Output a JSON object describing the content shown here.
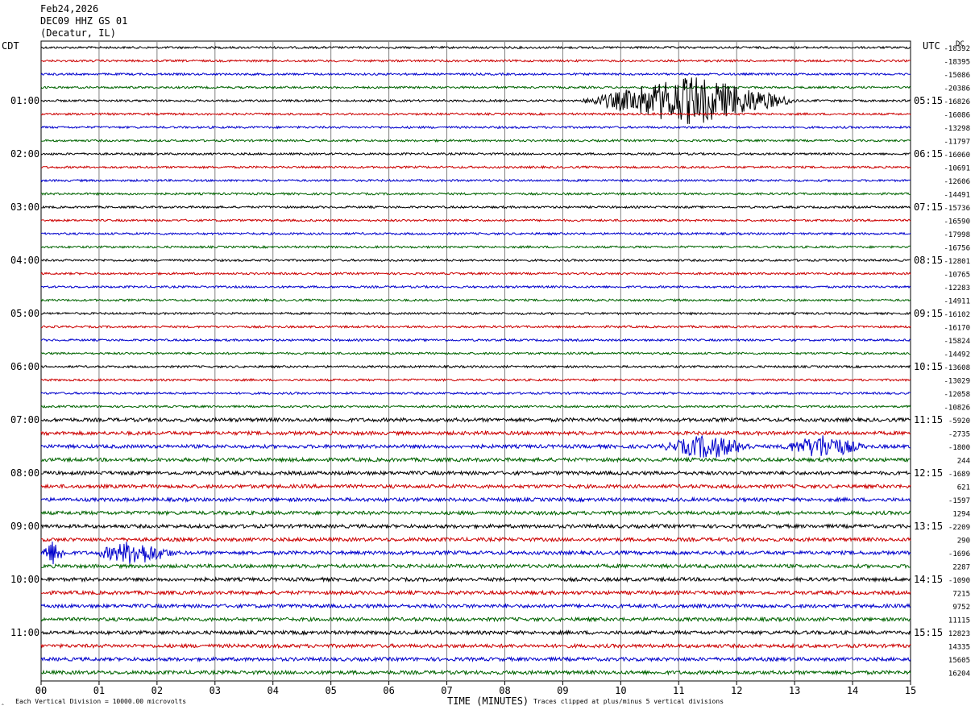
{
  "header": {
    "date": "Feb24,2026",
    "station": "DEC09 HHZ GS 01",
    "location": "(Decatur, IL)"
  },
  "labels": {
    "left_tz": "CDT",
    "right_tz": "UTC",
    "corner": "DC"
  },
  "footer": {
    "scale_note": "Each Vertical Division = 10000.00 microvolts",
    "clip_note": "Traces clipped at plus/minus 5 vertical divisions",
    "corner_mark": "‸"
  },
  "chart_data": {
    "type": "line",
    "title": "DEC09 HHZ GS 01",
    "xlabel": "TIME (MINUTES)",
    "ylabel": "",
    "xlim": [
      0,
      15
    ],
    "x_ticks": [
      "00",
      "01",
      "02",
      "03",
      "04",
      "05",
      "06",
      "07",
      "08",
      "09",
      "10",
      "11",
      "12",
      "13",
      "14",
      "15"
    ],
    "trace_colors": [
      "#000000",
      "#cc0000",
      "#0000cc",
      "#006400"
    ],
    "left_time_labels": [
      "01:00",
      "02:00",
      "03:00",
      "04:00",
      "05:00",
      "06:00",
      "07:00",
      "08:00",
      "09:00",
      "10:00",
      "11:00"
    ],
    "right_time_labels": [
      "05:15",
      "06:15",
      "07:15",
      "08:15",
      "09:15",
      "10:15",
      "11:15",
      "12:15",
      "13:15",
      "14:15",
      "15:15"
    ],
    "trace_offsets": [
      -18392,
      -18395,
      -15086,
      -20386,
      -16826,
      -16086,
      -13298,
      -11797,
      -16060,
      -10691,
      -12606,
      -14491,
      -15736,
      -16590,
      -17998,
      -16756,
      -12801,
      -10765,
      -12283,
      -14911,
      -16102,
      -16170,
      -15824,
      -14492,
      -13608,
      -13029,
      -12058,
      -10826,
      -5920,
      -2735,
      -1800,
      244,
      -1689,
      621,
      -1597,
      1294,
      -2209,
      290,
      -1696,
      2287,
      -1090,
      7215,
      9752,
      11115,
      12823,
      14335,
      15605,
      16204
    ],
    "trace_count": 48,
    "events": [
      {
        "trace": 4,
        "start_min": 9.3,
        "end_min": 13.1,
        "peak_min": 11.2
      },
      {
        "trace": 30,
        "start_min": 10.6,
        "end_min": 12.3,
        "peak_min": 11.5
      },
      {
        "trace": 30,
        "start_min": 12.8,
        "end_min": 14.3,
        "peak_min": 13.5
      },
      {
        "trace": 38,
        "start_min": 0.0,
        "end_min": 0.5,
        "peak_min": 0.2
      },
      {
        "trace": 38,
        "start_min": 1.0,
        "end_min": 2.5,
        "peak_min": 1.6
      }
    ]
  }
}
